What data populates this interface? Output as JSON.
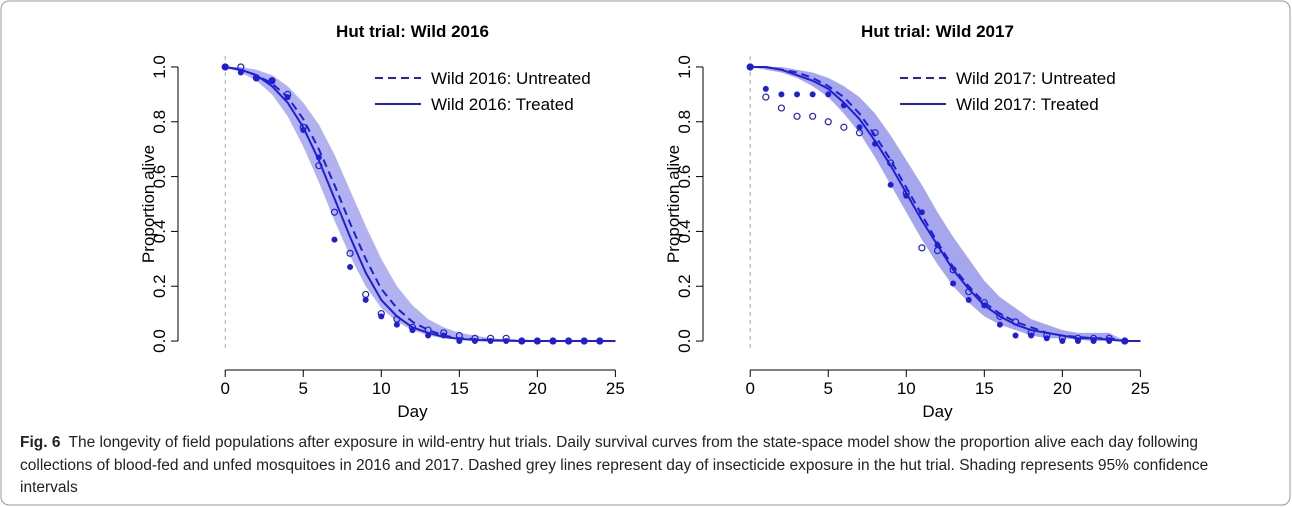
{
  "chart_data": [
    {
      "type": "line",
      "title": "Hut trial: Wild 2016",
      "xlabel": "Day",
      "ylabel": "Proportion alive",
      "xlim": [
        -2,
        26
      ],
      "ylim": [
        -0.04,
        1.04
      ],
      "xticks": [
        0,
        5,
        10,
        15,
        20,
        25
      ],
      "yticks": [
        {
          "value": 0,
          "label": "0.0"
        },
        {
          "value": 0.2,
          "label": "0.2"
        },
        {
          "value": 0.4,
          "label": "0.4"
        },
        {
          "value": 0.6,
          "label": "0.6"
        },
        {
          "value": 0.8,
          "label": "0.8"
        },
        {
          "value": 1,
          "label": "1.0"
        }
      ],
      "legend": "upper right",
      "exposure_day": 0,
      "x": [
        0,
        1,
        2,
        3,
        4,
        5,
        6,
        7,
        8,
        9,
        10,
        11,
        12,
        13,
        14,
        15,
        16,
        17,
        18,
        19,
        20,
        21,
        22,
        23,
        24,
        25
      ],
      "series": [
        {
          "name": "Wild 2016: Untreated",
          "color": "#1f1fd6",
          "style": "dashed",
          "values": [
            1.0,
            0.99,
            0.97,
            0.94,
            0.89,
            0.81,
            0.7,
            0.57,
            0.43,
            0.3,
            0.19,
            0.12,
            0.07,
            0.04,
            0.02,
            0.01,
            0.006,
            0.003,
            0.002,
            0.001,
            0,
            0,
            0,
            0,
            0,
            0
          ]
        },
        {
          "name": "Wild 2016: Treated",
          "color": "#1f1fd6",
          "style": "solid",
          "values": [
            1.0,
            0.99,
            0.97,
            0.93,
            0.87,
            0.78,
            0.66,
            0.52,
            0.38,
            0.25,
            0.15,
            0.09,
            0.05,
            0.03,
            0.015,
            0.008,
            0.004,
            0.002,
            0.001,
            0,
            0,
            0,
            0,
            0,
            0,
            0
          ]
        }
      ],
      "band": {
        "color": "#7373e6",
        "upper": [
          1.0,
          1.0,
          0.99,
          0.97,
          0.93,
          0.87,
          0.79,
          0.68,
          0.55,
          0.42,
          0.3,
          0.2,
          0.13,
          0.08,
          0.05,
          0.03,
          0.02,
          0.01,
          0.005,
          0.003,
          0.002,
          0.001,
          0,
          0,
          0,
          0
        ],
        "lower": [
          1.0,
          0.98,
          0.95,
          0.9,
          0.82,
          0.71,
          0.58,
          0.44,
          0.31,
          0.2,
          0.12,
          0.07,
          0.04,
          0.02,
          0.01,
          0.005,
          0.002,
          0.001,
          0,
          0,
          0,
          0,
          0,
          0,
          0,
          0
        ]
      },
      "obs_x": [
        0,
        1,
        2,
        3,
        4,
        5,
        6,
        7,
        8,
        9,
        10,
        11,
        12,
        13,
        14,
        15,
        16,
        17,
        18,
        19,
        20,
        21,
        22,
        23,
        24
      ],
      "observations": [
        {
          "marker": "open",
          "color": "#1f1fd6",
          "values": [
            1.0,
            1.0,
            0.96,
            0.95,
            0.9,
            0.78,
            0.64,
            0.47,
            0.32,
            0.17,
            0.1,
            0.08,
            0.05,
            0.04,
            0.03,
            0.02,
            0.01,
            0.01,
            0.01,
            0,
            0,
            0,
            0,
            0,
            0
          ]
        },
        {
          "marker": "filled",
          "color": "#1f1fd6",
          "values": [
            1.0,
            0.98,
            0.96,
            0.95,
            0.89,
            0.77,
            0.67,
            0.37,
            0.27,
            0.15,
            0.09,
            0.06,
            0.04,
            0.02,
            0.02,
            0,
            0,
            0,
            0,
            0,
            0,
            0,
            0,
            0,
            0
          ]
        }
      ]
    },
    {
      "type": "line",
      "title": "Hut trial: Wild 2017",
      "xlabel": "Day",
      "ylabel": "Proportion alive",
      "xlim": [
        -2,
        26
      ],
      "ylim": [
        -0.04,
        1.04
      ],
      "xticks": [
        0,
        5,
        10,
        15,
        20,
        25
      ],
      "yticks": [
        {
          "value": 0,
          "label": "0.0"
        },
        {
          "value": 0.2,
          "label": "0.2"
        },
        {
          "value": 0.4,
          "label": "0.4"
        },
        {
          "value": 0.6,
          "label": "0.6"
        },
        {
          "value": 0.8,
          "label": "0.8"
        },
        {
          "value": 1,
          "label": "1.0"
        }
      ],
      "legend": "upper right",
      "exposure_day": 0,
      "x": [
        0,
        1,
        2,
        3,
        4,
        5,
        6,
        7,
        8,
        9,
        10,
        11,
        12,
        13,
        14,
        15,
        16,
        17,
        18,
        19,
        20,
        21,
        22,
        23,
        24,
        25
      ],
      "series": [
        {
          "name": "Wild 2017: Untreated",
          "color": "#1f1fd6",
          "style": "dashed",
          "values": [
            1.0,
            1.0,
            0.99,
            0.98,
            0.96,
            0.93,
            0.89,
            0.83,
            0.75,
            0.66,
            0.56,
            0.46,
            0.36,
            0.27,
            0.2,
            0.14,
            0.1,
            0.07,
            0.05,
            0.03,
            0.02,
            0.015,
            0.01,
            0.01,
            0,
            0
          ]
        },
        {
          "name": "Wild 2017: Treated",
          "color": "#1f1fd6",
          "style": "solid",
          "values": [
            1.0,
            1.0,
            0.99,
            0.97,
            0.95,
            0.92,
            0.87,
            0.81,
            0.73,
            0.64,
            0.54,
            0.44,
            0.35,
            0.26,
            0.19,
            0.13,
            0.09,
            0.06,
            0.04,
            0.03,
            0.02,
            0.01,
            0.01,
            0.005,
            0,
            0
          ]
        }
      ],
      "band": {
        "color": "#5c5ce0",
        "upper": [
          1.0,
          1.0,
          1.0,
          0.99,
          0.98,
          0.96,
          0.93,
          0.89,
          0.83,
          0.75,
          0.66,
          0.57,
          0.47,
          0.38,
          0.3,
          0.22,
          0.16,
          0.12,
          0.08,
          0.06,
          0.04,
          0.03,
          0.03,
          0.03,
          0,
          0
        ],
        "lower": [
          1.0,
          0.99,
          0.98,
          0.96,
          0.93,
          0.89,
          0.83,
          0.76,
          0.67,
          0.57,
          0.47,
          0.37,
          0.28,
          0.2,
          0.14,
          0.09,
          0.06,
          0.04,
          0.02,
          0.01,
          0.01,
          0.005,
          0,
          0,
          0,
          0
        ]
      },
      "obs_x": [
        0,
        1,
        2,
        3,
        4,
        5,
        6,
        7,
        8,
        9,
        10,
        11,
        12,
        13,
        14,
        15,
        16,
        17,
        18,
        19,
        20,
        21,
        22,
        23,
        24
      ],
      "observations": [
        {
          "marker": "open",
          "color": "#1f1fd6",
          "values": [
            1.0,
            0.89,
            0.85,
            0.82,
            0.82,
            0.8,
            0.78,
            0.76,
            0.76,
            0.65,
            0.54,
            0.34,
            0.33,
            0.26,
            0.18,
            0.14,
            0.09,
            0.07,
            0.03,
            0.02,
            0.01,
            0.01,
            0.01,
            0.01,
            0
          ]
        },
        {
          "marker": "filled",
          "color": "#1f1fd6",
          "values": [
            1.0,
            0.92,
            0.9,
            0.9,
            0.9,
            0.9,
            0.86,
            0.78,
            0.72,
            0.57,
            0.53,
            0.47,
            0.35,
            0.21,
            0.15,
            0.13,
            0.06,
            0.02,
            0.02,
            0.01,
            0,
            0,
            0,
            0,
            0
          ]
        }
      ]
    }
  ],
  "caption": {
    "label": "Fig. 6",
    "text": "The longevity of field populations after exposure in wild-entry hut trials. Daily survival curves from the state-space model show the proportion alive each day following collections of blood-fed and unfed mosquitoes in 2016 and 2017. Dashed grey lines represent day of insecticide exposure in the hut trial. Shading represents 95% confidence intervals"
  }
}
